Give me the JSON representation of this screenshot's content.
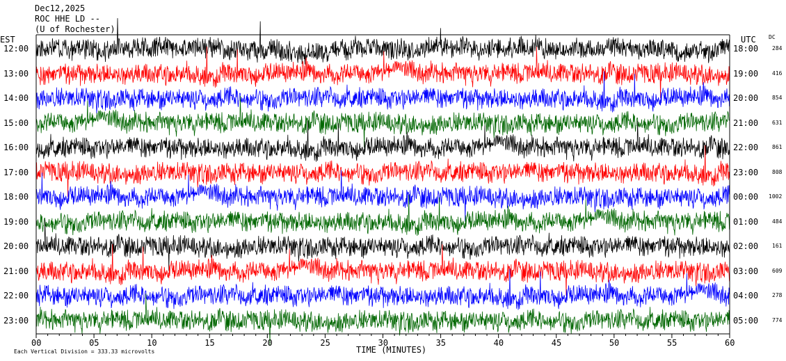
{
  "header": {
    "date": "Dec12,2025",
    "station": "ROC HHE LD --",
    "location": "(U of Rochester)"
  },
  "left_tz": "EST",
  "right_tz": "UTC",
  "dc_label": "DC",
  "colors": {
    "cycle": [
      "#000000",
      "#ff0000",
      "#0000ff",
      "#006600"
    ]
  },
  "chart_data": {
    "type": "line",
    "title": "",
    "xlabel": "TIME (MINUTES)",
    "xlim": [
      0,
      60
    ],
    "x_ticks": [
      "00",
      "05",
      "10",
      "15",
      "20",
      "25",
      "30",
      "35",
      "40",
      "45",
      "50",
      "55",
      "60"
    ],
    "footer_note": "Each Vertical Division =  333.33 microvolts",
    "rows": [
      {
        "est": "12:00",
        "utc": "18:00",
        "dc": "284"
      },
      {
        "est": "13:00",
        "utc": "19:00",
        "dc": "416"
      },
      {
        "est": "14:00",
        "utc": "20:00",
        "dc": "854"
      },
      {
        "est": "15:00",
        "utc": "21:00",
        "dc": "631"
      },
      {
        "est": "16:00",
        "utc": "22:00",
        "dc": "861"
      },
      {
        "est": "17:00",
        "utc": "23:00",
        "dc": "808"
      },
      {
        "est": "18:00",
        "utc": "00:00",
        "dc": "1002"
      },
      {
        "est": "19:00",
        "utc": "01:00",
        "dc": "484"
      },
      {
        "est": "20:00",
        "utc": "02:00",
        "dc": "161"
      },
      {
        "est": "21:00",
        "utc": "03:00",
        "dc": "609"
      },
      {
        "est": "22:00",
        "utc": "04:00",
        "dc": "278"
      },
      {
        "est": "23:00",
        "utc": "05:00",
        "dc": "774"
      }
    ]
  }
}
